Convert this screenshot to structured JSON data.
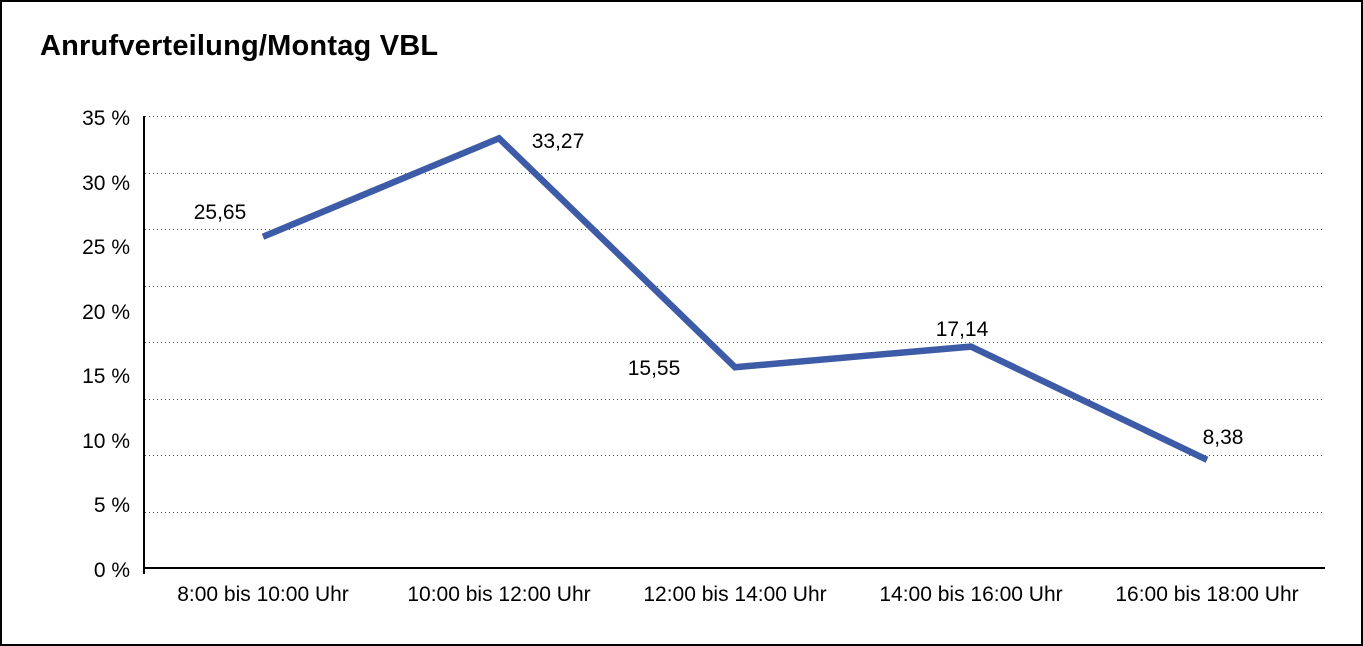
{
  "chart_data": {
    "type": "line",
    "title": "Anrufverteilung/Montag VBL",
    "categories": [
      "8:00 bis 10:00 Uhr",
      "10:00 bis 12:00 Uhr",
      "12:00 bis 14:00 Uhr",
      "14:00 bis 16:00 Uhr",
      "16:00 bis 18:00 Uhr"
    ],
    "values": [
      25.65,
      33.27,
      15.55,
      17.14,
      8.38
    ],
    "value_labels": [
      "25,65",
      "33,27",
      "15,55",
      "17,14",
      "8,38"
    ],
    "ytick_labels": [
      "35 %",
      "30 %",
      "25 %",
      "20 %",
      "15 %",
      "10 %",
      "5 %",
      "0 %"
    ],
    "ylim": [
      0,
      35
    ],
    "xlabel": "",
    "ylabel": "",
    "grid": "horizontal-dotted",
    "gridline_count": 8,
    "legend_position": "none",
    "line_color": "#3d5ba6",
    "line_width": 6.5,
    "text_color": "#000000",
    "axis_color": "#000000"
  }
}
